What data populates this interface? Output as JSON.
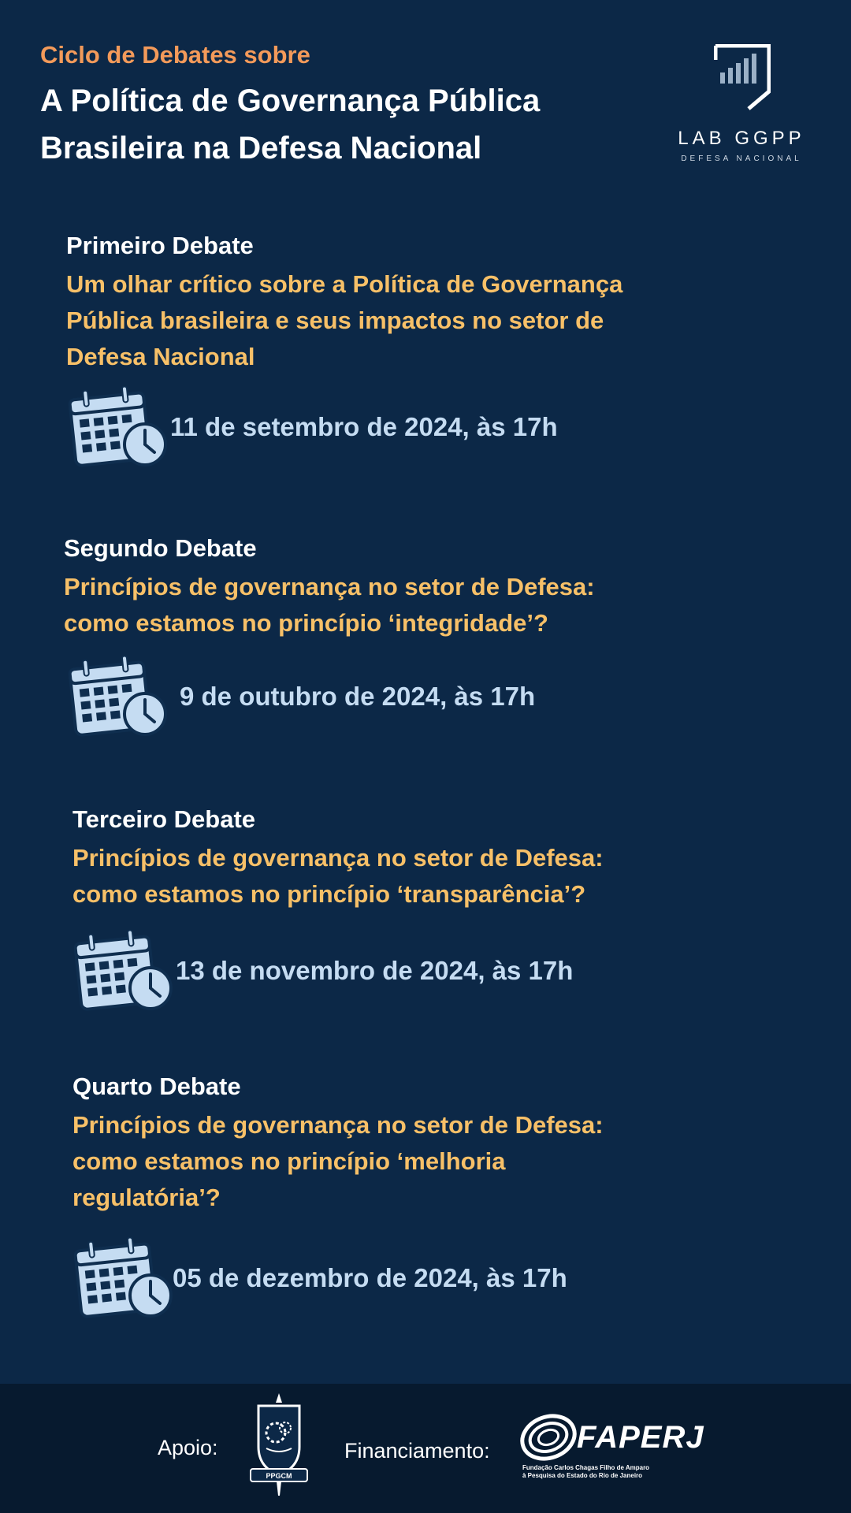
{
  "header": {
    "kicker": "Ciclo de Debates sobre",
    "title_lines": [
      "A Política de Governança Pública",
      "Brasileira na Defesa Nacional"
    ]
  },
  "logo": {
    "name": "LAB GGPP",
    "subtitle": "DEFESA NACIONAL"
  },
  "debates": [
    {
      "label": "Primeiro Debate",
      "topic_lines": [
        "Um olhar crítico sobre a Política de Governança",
        "Pública brasileira e seus impactos no setor de",
        "Defesa Nacional"
      ],
      "date": "11 de setembro de 2024, às 17h"
    },
    {
      "label": "Segundo Debate",
      "topic_lines": [
        "Princípios de governança no setor de Defesa:",
        "como estamos no princípio ‘integridade’?"
      ],
      "date": "9 de outubro de 2024, às 17h"
    },
    {
      "label": "Terceiro Debate",
      "topic_lines": [
        "Princípios de governança no setor de Defesa:",
        "como estamos no princípio ‘transparência’?"
      ],
      "date": "13 de novembro de 2024, às 17h"
    },
    {
      "label": "Quarto Debate",
      "topic_lines": [
        "Princípios de governança no setor de Defesa:",
        "como estamos no princípio ‘melhoria",
        "regulatória’?"
      ],
      "date": "05 de dezembro de 2024, às 17h"
    }
  ],
  "footer": {
    "support_label": "Apoio:",
    "seal_text": "PPGCM",
    "funding_label": "Financiamento:",
    "funder_name": "FAPERJ",
    "funder_subtitle_lines": [
      "Fundação Carlos Chagas Filho de Amparo",
      "à Pesquisa do Estado do Rio de Janeiro"
    ]
  },
  "icons": {
    "calendar": "calendar-clock-icon",
    "logo": "lab-ggpp-logo-icon",
    "seal": "ppgcm-seal-icon",
    "funder": "faperj-logo-icon"
  },
  "colors": {
    "background": "#0c2847",
    "footer": "#071a2f",
    "kicker": "#f39a5a",
    "topic": "#f7c068",
    "date": "#c5dcf2"
  }
}
